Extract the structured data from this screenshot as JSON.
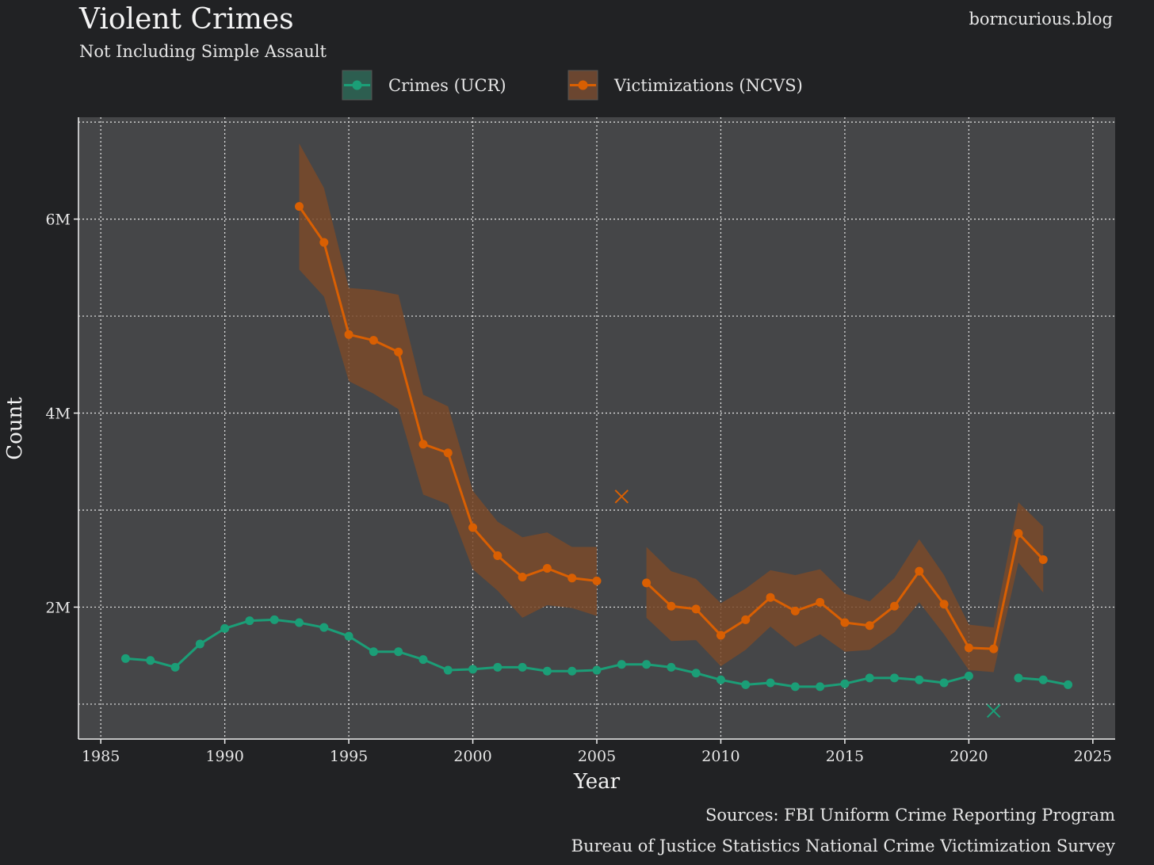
{
  "header": {
    "title": "Violent Crimes",
    "subtitle": "Not Including Simple Assault",
    "blog": "borncurious.blog"
  },
  "footer": {
    "source_line1": "Sources: FBI Uniform Crime Reporting Program",
    "source_line2": "Bureau of Justice Statistics National Crime Victimization Survey"
  },
  "colors": {
    "background": "#212224",
    "panel": "#454648",
    "ucr": "#1b9e77",
    "ncvs": "#d95f02",
    "ncvs_band": "#7a4a2a",
    "grid": "#e8e8e8"
  },
  "chart_data": {
    "type": "line",
    "title": "Violent Crimes",
    "subtitle": "Not Including Simple Assault",
    "xlabel": "Year",
    "ylabel": "Count",
    "xlim": [
      1984.1,
      2025.9
    ],
    "ylim": [
      640000,
      7050000
    ],
    "x_ticks": [
      1985,
      1990,
      1995,
      2000,
      2005,
      2010,
      2015,
      2020,
      2025
    ],
    "x_tick_labels": [
      "1985",
      "1990",
      "1995",
      "2000",
      "2005",
      "2010",
      "2015",
      "2020",
      "2025"
    ],
    "y_ticks": [
      2000000,
      4000000,
      6000000
    ],
    "y_tick_labels": [
      "2M",
      "4M",
      "6M"
    ],
    "y_minor_gridlines": [
      1000000,
      3000000,
      5000000,
      7000000
    ],
    "legend": [
      "Crimes (UCR)",
      "Victimizations (NCVS)"
    ],
    "series": [
      {
        "name": "Crimes (UCR)",
        "color": "#1b9e77",
        "segments": [
          {
            "x": [
              1986,
              1987,
              1988,
              1989,
              1990,
              1991,
              1992,
              1993,
              1994,
              1995,
              1996,
              1997,
              1998,
              1999,
              2000,
              2001,
              2002,
              2003,
              2004,
              2005,
              2006,
              2007,
              2008,
              2009,
              2010,
              2011,
              2012,
              2013,
              2014,
              2015,
              2016,
              2017,
              2018,
              2019,
              2020
            ],
            "y": [
              1470000,
              1450000,
              1380000,
              1620000,
              1780000,
              1860000,
              1870000,
              1840000,
              1790000,
              1700000,
              1540000,
              1540000,
              1460000,
              1350000,
              1360000,
              1380000,
              1380000,
              1340000,
              1340000,
              1350000,
              1410000,
              1410000,
              1380000,
              1320000,
              1250000,
              1200000,
              1220000,
              1180000,
              1180000,
              1210000,
              1270000,
              1270000,
              1250000,
              1220000,
              1290000
            ]
          },
          {
            "x": [
              2022,
              2023,
              2024
            ],
            "y": [
              1270000,
              1250000,
              1200000
            ]
          }
        ],
        "outliers": [
          {
            "x": 2021,
            "y": 930000
          }
        ]
      },
      {
        "name": "Victimizations (NCVS)",
        "color": "#d95f02",
        "segments": [
          {
            "x": [
              1993,
              1994,
              1995,
              1996,
              1997,
              1998,
              1999,
              2000,
              2001,
              2002,
              2003,
              2004,
              2005
            ],
            "y": [
              6130000,
              5760000,
              4810000,
              4750000,
              4630000,
              3680000,
              3590000,
              2820000,
              2530000,
              2310000,
              2400000,
              2300000,
              2270000
            ],
            "low": [
              5480000,
              5200000,
              4330000,
              4200000,
              4040000,
              3160000,
              3060000,
              2390000,
              2170000,
              1890000,
              2020000,
              1990000,
              1910000
            ],
            "high": [
              6780000,
              6320000,
              5290000,
              5270000,
              5220000,
              4190000,
              4070000,
              3200000,
              2880000,
              2720000,
              2770000,
              2620000,
              2620000
            ]
          },
          {
            "x": [
              2007,
              2008,
              2009,
              2010,
              2011,
              2012,
              2013,
              2014,
              2015,
              2016,
              2017,
              2018,
              2019,
              2020,
              2021,
              2022,
              2023
            ],
            "y": [
              2250000,
              2010000,
              1980000,
              1710000,
              1870000,
              2100000,
              1960000,
              2050000,
              1840000,
              1810000,
              2010000,
              2370000,
              2030000,
              1580000,
              1570000,
              2760000,
              2490000
            ],
            "low": [
              1890000,
              1650000,
              1660000,
              1390000,
              1560000,
              1800000,
              1590000,
              1720000,
              1540000,
              1560000,
              1740000,
              2050000,
              1720000,
              1350000,
              1330000,
              2460000,
              2150000
            ],
            "high": [
              2620000,
              2370000,
              2290000,
              2040000,
              2190000,
              2380000,
              2330000,
              2390000,
              2140000,
              2060000,
              2300000,
              2700000,
              2330000,
              1820000,
              1790000,
              3080000,
              2830000
            ]
          }
        ],
        "outliers": [
          {
            "x": 2006,
            "y": 3140000
          }
        ]
      }
    ]
  }
}
